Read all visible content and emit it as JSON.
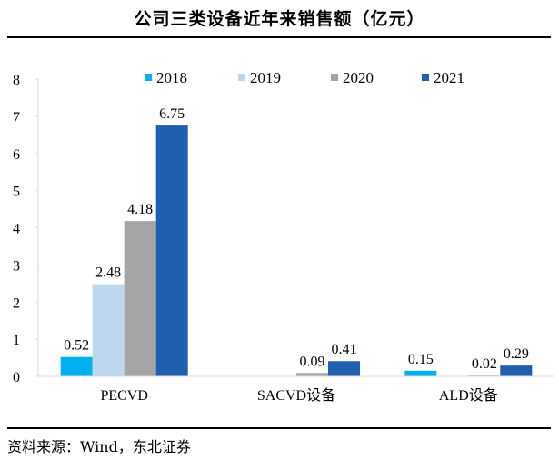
{
  "header": {
    "title": "公司三类设备近年来销售额（亿元）"
  },
  "footer": {
    "source": "资料来源：Wind，东北证券"
  },
  "chart_data": {
    "type": "bar",
    "title": "公司三类设备近年来销售额（亿元）",
    "xlabel": "",
    "ylabel": "",
    "categories": [
      "PECVD",
      "SACVD设备",
      "ALD设备"
    ],
    "series": [
      {
        "name": "2018",
        "color": "#00B0F0",
        "values": [
          0.52,
          null,
          0.15
        ]
      },
      {
        "name": "2019",
        "color": "#BDD7EE",
        "values": [
          2.48,
          null,
          null
        ]
      },
      {
        "name": "2020",
        "color": "#A5A5A5",
        "values": [
          4.18,
          0.09,
          0.02
        ]
      },
      {
        "name": "2021",
        "color": "#1F5FAE",
        "values": [
          6.75,
          0.41,
          0.29
        ]
      }
    ],
    "data_labels": [
      [
        "0.52",
        "",
        "0.15"
      ],
      [
        "2.48",
        "",
        ""
      ],
      [
        "4.18",
        "0.09",
        "0.02"
      ],
      [
        "6.75",
        "0.41",
        "0.29"
      ]
    ],
    "ylim": [
      0,
      8
    ],
    "yticks": [
      0,
      1,
      2,
      3,
      4,
      5,
      6,
      7,
      8
    ],
    "grid": false,
    "legend_position": "top"
  }
}
